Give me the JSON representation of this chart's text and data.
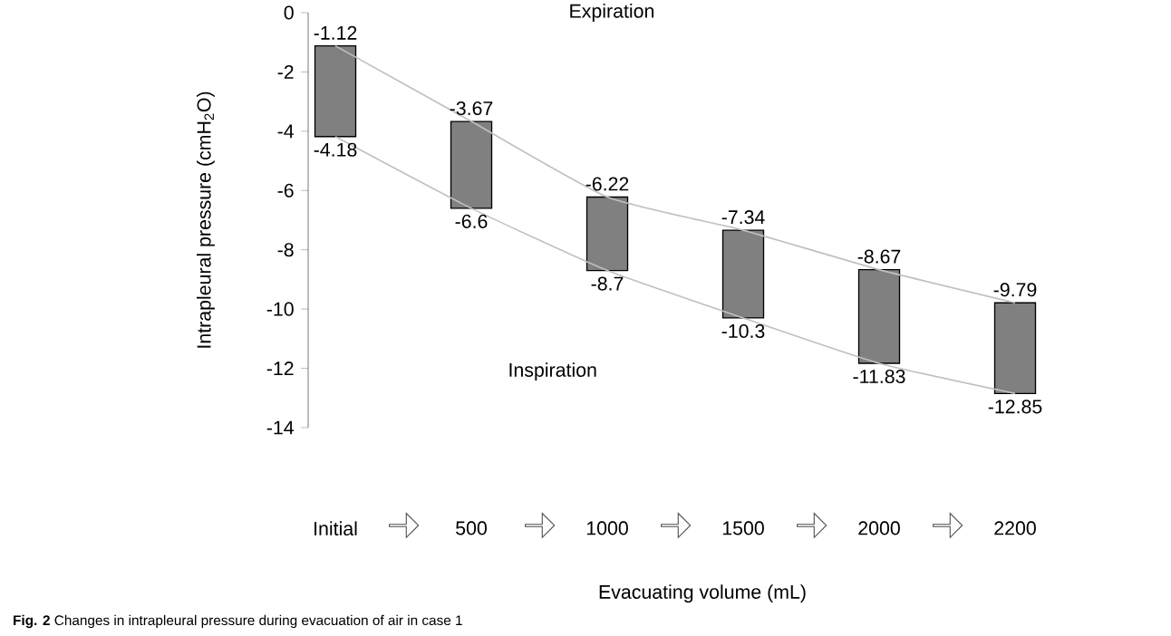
{
  "chart_data": {
    "type": "bar",
    "categories": [
      "Initial",
      "500",
      "1000",
      "1500",
      "2000",
      "2200"
    ],
    "xlabel": "Evacuating volume (mL)",
    "ylabel": "Intrapleural pressure (cmH$_{2}$O)",
    "ylim": [
      -14,
      0
    ],
    "yticks": [
      -14,
      -12,
      -10,
      -8,
      -6,
      -4,
      -2,
      0
    ],
    "grid": false,
    "annotations": [
      "Expiration",
      "Inspiration",
      "**Fig. 2** Changes in intrapleural pressure during evacuation of air in case 1"
    ],
    "series": [
      {
        "color": "#808080",
        "base": [
          -4.18,
          -6.6,
          -8.7,
          -10.3,
          -11.83,
          -12.85
        ],
        "values": [
          3.06,
          2.93,
          2.48,
          2.96,
          3.16,
          3.06
        ]
      },
      {
        "type": "line",
        "color": "#c0c0c0",
        "values": [
          -1.12,
          -3.67,
          -6.22,
          -7.34,
          -8.67,
          -9.79
        ],
        "value_labels": [
          "-1.12",
          "-3.67",
          "-6.22",
          "-7.34",
          "-8.67",
          "-9.79"
        ]
      },
      {
        "type": "line",
        "color": "#c0c0c0",
        "values": [
          -4.18,
          -6.6,
          -8.7,
          -10.3,
          -11.83,
          -12.85
        ],
        "value_labels": [
          "-4.18",
          "-6.6",
          "-8.7",
          "-10.3",
          "-11.83",
          "-12.85"
        ]
      }
    ]
  }
}
